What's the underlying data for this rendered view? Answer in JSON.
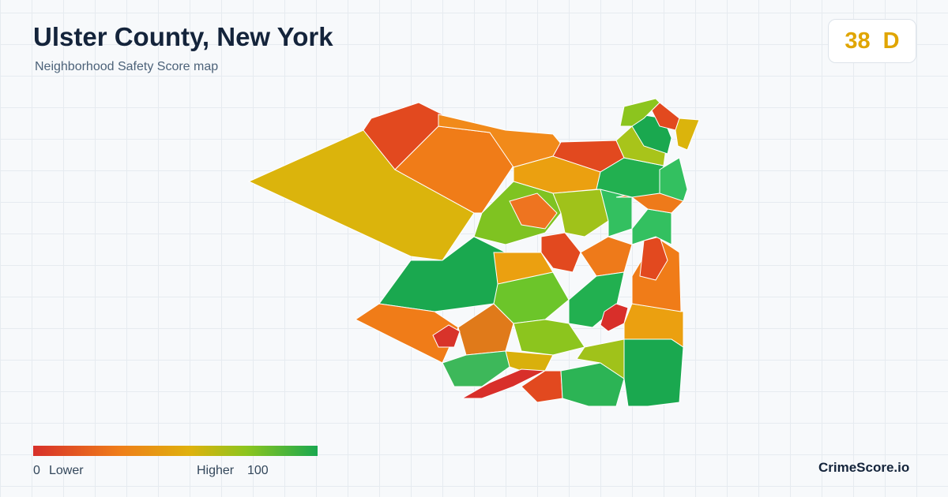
{
  "header": {
    "title": "Ulster County, New York",
    "subtitle": "Neighborhood Safety Score map"
  },
  "badge": {
    "score": 38,
    "grade": "D"
  },
  "legend": {
    "min": 0,
    "low_label": "Lower",
    "high_label": "Higher",
    "max": 100
  },
  "brand": "CrimeScore.io"
}
